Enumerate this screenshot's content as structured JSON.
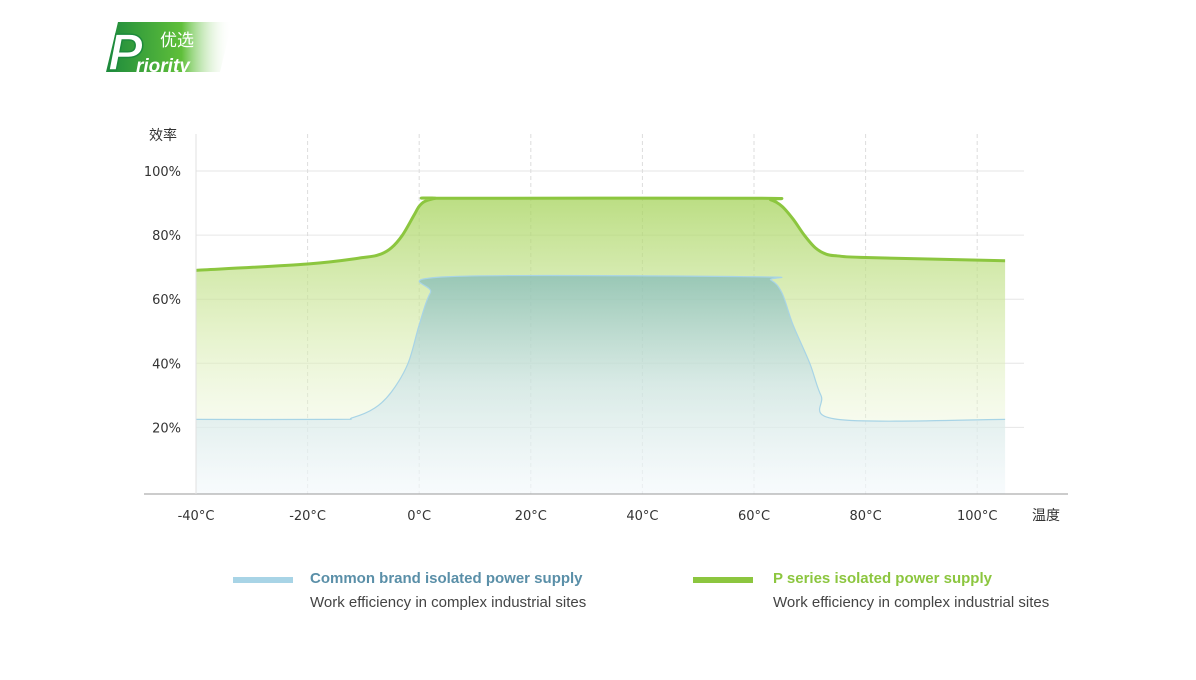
{
  "logo": {
    "letter": "P",
    "word": "riority",
    "cn": "优选",
    "colors": {
      "green": "#1d8a3c",
      "light": "#5fbf3a"
    }
  },
  "chart_data": {
    "type": "area",
    "title": "",
    "ylabel": "效率",
    "xlabel": "温度",
    "xlim": [
      -45,
      107
    ],
    "ylim": [
      0,
      100
    ],
    "x_ticks": [
      -40,
      -20,
      0,
      20,
      40,
      60,
      80,
      100
    ],
    "x_tick_labels": [
      "-40°C",
      "-20°C",
      "0°C",
      "20°C",
      "40°C",
      "60°C",
      "80°C",
      "100°C"
    ],
    "y_ticks": [
      20,
      40,
      60,
      80,
      100
    ],
    "y_tick_labels": [
      "20%",
      "40%",
      "60%",
      "80%",
      "100%"
    ],
    "grid": true,
    "series": [
      {
        "name": "Common brand isolated power supply",
        "color": "#a8d4e6",
        "x": [
          -40,
          -15,
          -12,
          -8,
          -5,
          -2,
          0,
          2,
          5,
          60,
          63,
          65,
          67,
          70,
          72,
          75,
          105
        ],
        "y": [
          22.5,
          22.5,
          23,
          26,
          31,
          40,
          52,
          62,
          67,
          67,
          66,
          62,
          52,
          40,
          30,
          22.5,
          22.5
        ]
      },
      {
        "name": "P series isolated power supply",
        "color": "#8cc63f",
        "x": [
          -40,
          -20,
          -10,
          -7,
          -5,
          -3,
          -1,
          0,
          1,
          3,
          5,
          60,
          63,
          65,
          67,
          69,
          71,
          73,
          75,
          80,
          105
        ],
        "y": [
          69,
          71,
          73,
          74,
          76,
          80,
          86,
          89,
          90.5,
          91.5,
          91.5,
          91.5,
          91,
          89,
          85,
          80,
          76,
          74,
          73.5,
          73,
          72
        ]
      }
    ]
  },
  "legend": [
    {
      "title": "Common brand isolated power supply",
      "subtitle": "Work efficiency in complex industrial sites",
      "color": "#a8d4e6",
      "title_color": "#5a8fa8"
    },
    {
      "title": "P series isolated power supply",
      "subtitle": "Work efficiency in complex industrial sites",
      "color": "#8cc63f",
      "title_color": "#8cc63f"
    }
  ]
}
